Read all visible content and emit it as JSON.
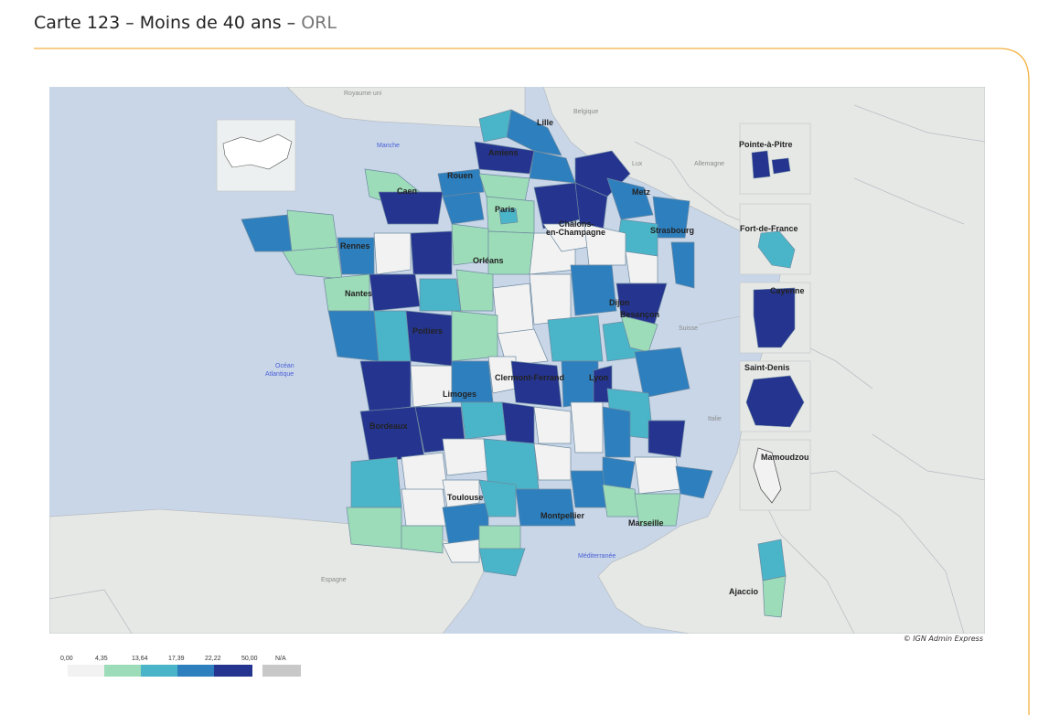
{
  "header": {
    "title_main": "Carte 123 – Moins de 40 ans – ",
    "title_accent": "ORL"
  },
  "colors": {
    "accent_line": "#f5b040",
    "sea": "#c8d6e8",
    "land": "#e6e8e6",
    "na": "#c8c8c8",
    "classes": [
      "#f2f2f2",
      "#9ddcb8",
      "#4ab5c8",
      "#2e7fbe",
      "#25348f"
    ]
  },
  "map_labels": {
    "countries": [
      "Royaume uni",
      "Belgique",
      "Lux",
      "Allemagne",
      "Suisse",
      "Italie",
      "Espagne"
    ],
    "seas": [
      "Manche",
      "Océan",
      "Atlantique",
      "Méditerranée"
    ],
    "cities": [
      "Lille",
      "Amiens",
      "Rouen",
      "Caen",
      "Paris",
      "Châlons-",
      "en-Champagne",
      "Metz",
      "Strasbourg",
      "Rennes",
      "Orléans",
      "Nantes",
      "Dijon",
      "Besançon",
      "Poitiers",
      "Clermont-Ferrand",
      "Lyon",
      "Limoges",
      "Bordeaux",
      "Toulouse",
      "Montpellier",
      "Marseille",
      "Ajaccio"
    ],
    "overseas": [
      "Pointe-à-Pitre",
      "Fort-de-France",
      "Cayenne",
      "Saint-Denis",
      "Mamoudzou"
    ]
  },
  "credit": "© IGN Admin Express",
  "legend": {
    "breaks": [
      "0,00",
      "4,35",
      "13,64",
      "17,39",
      "22,22",
      "50,00"
    ],
    "na_label": "N/A"
  }
}
